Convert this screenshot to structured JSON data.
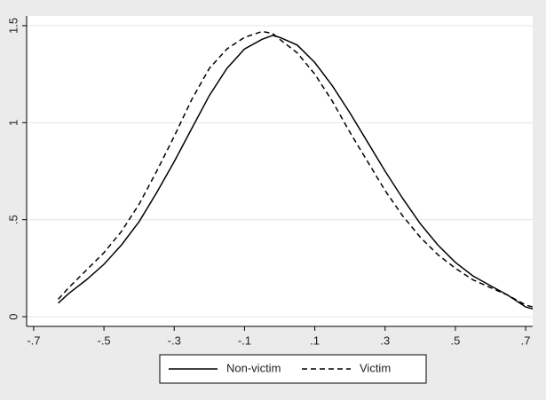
{
  "chart_data": {
    "type": "line",
    "x": [
      -0.63,
      -0.6,
      -0.55,
      -0.5,
      -0.45,
      -0.4,
      -0.35,
      -0.3,
      -0.25,
      -0.2,
      -0.15,
      -0.1,
      -0.05,
      -0.02,
      0.0,
      0.05,
      0.1,
      0.15,
      0.2,
      0.25,
      0.3,
      0.35,
      0.4,
      0.45,
      0.5,
      0.55,
      0.6,
      0.65,
      0.7,
      0.72
    ],
    "series": [
      {
        "name": "Non-victim",
        "color": "#000000",
        "dash": "solid",
        "values": [
          0.07,
          0.12,
          0.19,
          0.27,
          0.37,
          0.49,
          0.64,
          0.8,
          0.97,
          1.14,
          1.28,
          1.38,
          1.43,
          1.45,
          1.44,
          1.4,
          1.31,
          1.19,
          1.05,
          0.9,
          0.75,
          0.61,
          0.48,
          0.37,
          0.28,
          0.21,
          0.16,
          0.11,
          0.05,
          0.04
        ]
      },
      {
        "name": "Victim",
        "color": "#000000",
        "dash": "dashed",
        "values": [
          0.09,
          0.15,
          0.24,
          0.33,
          0.44,
          0.58,
          0.75,
          0.93,
          1.12,
          1.28,
          1.38,
          1.44,
          1.47,
          1.46,
          1.43,
          1.36,
          1.25,
          1.11,
          0.95,
          0.8,
          0.65,
          0.52,
          0.41,
          0.32,
          0.25,
          0.19,
          0.15,
          0.11,
          0.06,
          0.05
        ]
      }
    ],
    "xlim": [
      -0.72,
      0.72
    ],
    "xticks": [
      {
        "value": -0.7,
        "label": "-.7"
      },
      {
        "value": -0.5,
        "label": "-.5"
      },
      {
        "value": -0.3,
        "label": "-.3"
      },
      {
        "value": -0.1,
        "label": "-.1"
      },
      {
        "value": 0.1,
        "label": ".1"
      },
      {
        "value": 0.3,
        "label": ".3"
      },
      {
        "value": 0.5,
        "label": ".5"
      },
      {
        "value": 0.7,
        "label": ".7"
      }
    ],
    "ylim": [
      -0.05,
      1.55
    ],
    "yticks": [
      0,
      {
        "value": 0.5,
        "label": ".5"
      },
      1,
      1.5
    ],
    "grid": true,
    "legend": "bottom"
  }
}
